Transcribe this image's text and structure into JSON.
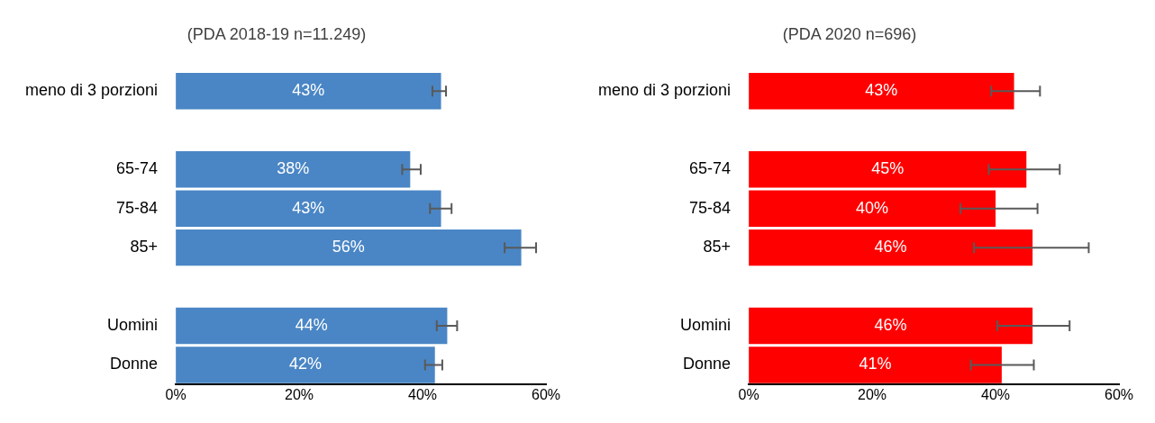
{
  "chart_data": [
    {
      "type": "bar",
      "orientation": "horizontal",
      "title": "(PDA 2018-19 n=11.249)",
      "categories": [
        "meno di 3 porzioni",
        null,
        "65-74",
        "75-84",
        "85+",
        null,
        "Uomini",
        "Donne"
      ],
      "values": [
        43,
        null,
        38,
        43,
        56,
        null,
        44,
        42
      ],
      "value_labels": [
        "43%",
        null,
        "38%",
        "43%",
        "56%",
        null,
        "44%",
        "42%"
      ],
      "errors": [
        [
          41.6,
          43.8
        ],
        null,
        [
          36.7,
          39.7
        ],
        [
          41.2,
          44.7
        ],
        [
          53.3,
          58.4
        ],
        null,
        [
          42.3,
          45.6
        ],
        [
          40.4,
          43.2
        ]
      ],
      "color": "#4a86c5",
      "xlim": [
        0,
        60
      ],
      "xticks": [
        {
          "value": 0,
          "label": "0%"
        },
        {
          "value": 20,
          "label": "20%"
        },
        {
          "value": 40,
          "label": "40%"
        },
        {
          "value": 60,
          "label": "60%"
        }
      ],
      "grid": false,
      "legend": false
    },
    {
      "type": "bar",
      "orientation": "horizontal",
      "title": "(PDA 2020 n=696)",
      "categories": [
        "meno di 3 porzioni",
        null,
        "65-74",
        "75-84",
        "85+",
        null,
        "Uomini",
        "Donne"
      ],
      "values": [
        43,
        null,
        45,
        40,
        46,
        null,
        46,
        41
      ],
      "value_labels": [
        "43%",
        null,
        "45%",
        "40%",
        "46%",
        null,
        "46%",
        "41%"
      ],
      "errors": [
        [
          39.3,
          47.2
        ],
        null,
        [
          38.9,
          50.4
        ],
        [
          34.3,
          46.8
        ],
        [
          36.5,
          55.1
        ],
        null,
        [
          40.3,
          52.0
        ],
        [
          36.0,
          46.2
        ]
      ],
      "color": "#ff0000",
      "xlim": [
        0,
        60
      ],
      "xticks": [
        {
          "value": 0,
          "label": "0%"
        },
        {
          "value": 20,
          "label": "20%"
        },
        {
          "value": 40,
          "label": "40%"
        },
        {
          "value": 60,
          "label": "60%"
        }
      ],
      "grid": false,
      "legend": false
    }
  ]
}
